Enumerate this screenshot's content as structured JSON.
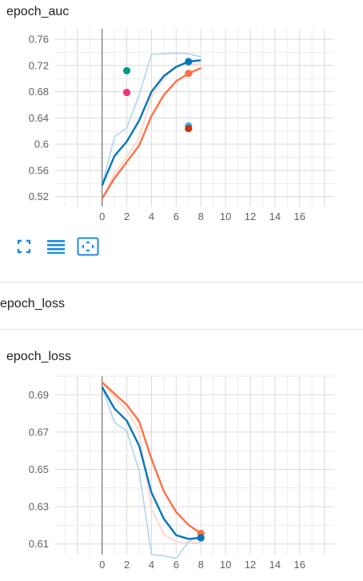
{
  "charts": {
    "auc_title": "epoch_auc",
    "loss_section_title": "epoch_loss",
    "loss_title": "epoch_loss"
  },
  "toolbar": {
    "fullscreen_icon": "fullscreen-icon",
    "data_selection_icon": "lines-icon",
    "fit_domain_icon": "fit-domain-icon"
  },
  "chart_data": [
    {
      "type": "line",
      "title": "epoch_auc",
      "xlabel": "",
      "ylabel": "",
      "x_ticks": [
        0,
        2,
        4,
        6,
        8,
        10,
        12,
        14,
        16
      ],
      "y_ticks": [
        0.52,
        0.56,
        0.6,
        0.64,
        0.68,
        0.72,
        0.76
      ],
      "xlim": [
        -3.8,
        18.8
      ],
      "ylim": [
        0.505,
        0.776
      ],
      "grid": true,
      "series": [
        {
          "color": "#ff7043",
          "smoothed": true,
          "x": [
            0,
            1,
            2,
            3,
            4,
            5,
            6,
            7,
            8
          ],
          "y": [
            0.517,
            0.548,
            0.573,
            0.598,
            0.643,
            0.675,
            0.696,
            0.708,
            0.716
          ],
          "raw_y": [
            0.517,
            0.555,
            0.58,
            0.61,
            0.672,
            0.7,
            0.718,
            0.722,
            0.722
          ]
        },
        {
          "color": "#0077bb",
          "smoothed": true,
          "x": [
            0,
            1,
            2,
            3,
            4,
            5,
            6,
            7,
            8
          ],
          "y": [
            0.537,
            0.582,
            0.604,
            0.636,
            0.68,
            0.704,
            0.718,
            0.726,
            0.728
          ],
          "raw_y": [
            0.537,
            0.611,
            0.625,
            0.675,
            0.737,
            0.738,
            0.739,
            0.738,
            0.733
          ]
        }
      ],
      "points": [
        {
          "x": 2,
          "y": 0.712,
          "color": "#009988"
        },
        {
          "x": 2,
          "y": 0.679,
          "color": "#ee3377"
        },
        {
          "x": 7,
          "y": 0.628,
          "color": "#33bbee"
        },
        {
          "x": 7,
          "y": 0.624,
          "color": "#cc3311"
        },
        {
          "x": 7,
          "y": 0.726,
          "color": "#0077bb"
        },
        {
          "x": 7,
          "y": 0.708,
          "color": "#ff7043"
        }
      ]
    },
    {
      "type": "line",
      "title": "epoch_loss",
      "xlabel": "",
      "ylabel": "",
      "x_ticks": [
        0,
        2,
        4,
        6,
        8,
        10,
        12,
        14,
        16
      ],
      "y_ticks": [
        0.61,
        0.63,
        0.65,
        0.67,
        0.69
      ],
      "xlim": [
        -3.8,
        18.8
      ],
      "ylim": [
        0.6043,
        0.7
      ],
      "grid": true,
      "series": [
        {
          "color": "#ff7043",
          "smoothed": true,
          "x": [
            0,
            1,
            2,
            3,
            4,
            5,
            6,
            7,
            8
          ],
          "y": [
            0.6967,
            0.6906,
            0.6846,
            0.6758,
            0.6556,
            0.6382,
            0.6271,
            0.6202,
            0.6157
          ],
          "raw_y": [
            0.6967,
            0.6886,
            0.6816,
            0.6706,
            0.6289,
            0.6151,
            0.6112,
            0.6107,
            0.6107
          ]
        },
        {
          "color": "#0077bb",
          "smoothed": true,
          "x": [
            0,
            1,
            2,
            3,
            4,
            5,
            6,
            7,
            8
          ],
          "y": [
            0.6942,
            0.6826,
            0.6761,
            0.6627,
            0.6375,
            0.6235,
            0.6147,
            0.6127,
            0.6133
          ],
          "raw_y": [
            0.6942,
            0.6751,
            0.6706,
            0.6491,
            0.6043,
            0.6037,
            0.6022,
            0.6112,
            0.6147
          ]
        }
      ],
      "points": [
        {
          "x": 8,
          "y": 0.6157,
          "color": "#ff7043"
        },
        {
          "x": 8,
          "y": 0.6133,
          "color": "#0077bb"
        }
      ]
    }
  ]
}
